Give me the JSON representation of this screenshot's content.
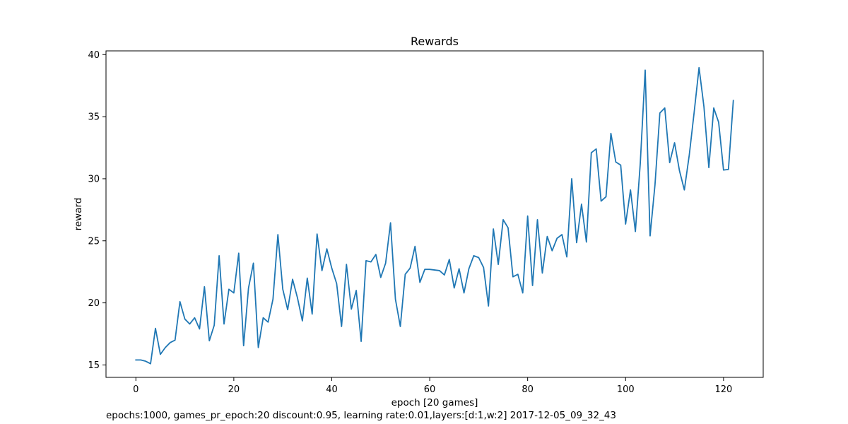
{
  "chart_data": {
    "type": "line",
    "title": "Rewards",
    "xlabel": "epoch [20 games]",
    "ylabel": "reward",
    "xlim": [
      -6.1,
      128.1
    ],
    "ylim": [
      14.0,
      40.3
    ],
    "xticks": [
      0,
      20,
      40,
      60,
      80,
      100,
      120
    ],
    "xtick_labels": [
      "0",
      "20",
      "40",
      "60",
      "80",
      "100",
      "120"
    ],
    "yticks": [
      15,
      20,
      25,
      30,
      35,
      40
    ],
    "ytick_labels": [
      "15",
      "20",
      "25",
      "30",
      "35",
      "40"
    ],
    "grid": false,
    "line_color": "#1f77b4",
    "series": [
      {
        "name": "reward",
        "x": [
          0,
          1,
          2,
          3,
          4,
          5,
          6,
          7,
          8,
          9,
          10,
          11,
          12,
          13,
          14,
          15,
          16,
          17,
          18,
          19,
          20,
          21,
          22,
          23,
          24,
          25,
          26,
          27,
          28,
          29,
          30,
          31,
          32,
          33,
          34,
          35,
          36,
          37,
          38,
          39,
          40,
          41,
          42,
          43,
          44,
          45,
          46,
          47,
          48,
          49,
          50,
          51,
          52,
          53,
          54,
          55,
          56,
          57,
          58,
          59,
          60,
          61,
          62,
          63,
          64,
          65,
          66,
          67,
          68,
          69,
          70,
          71,
          72,
          73,
          74,
          75,
          76,
          77,
          78,
          79,
          80,
          81,
          82,
          83,
          84,
          85,
          86,
          87,
          88,
          89,
          90,
          91,
          92,
          93,
          94,
          95,
          96,
          97,
          98,
          99,
          100,
          101,
          102,
          103,
          104,
          105,
          106,
          107,
          108,
          109,
          110,
          111,
          112,
          113,
          114,
          115,
          116,
          117,
          118,
          119,
          120,
          121,
          122
        ],
        "values": [
          15.4,
          15.4,
          15.3,
          15.1,
          17.95,
          15.85,
          16.4,
          16.8,
          17.0,
          20.1,
          18.7,
          18.3,
          18.8,
          17.9,
          21.3,
          16.95,
          18.2,
          23.8,
          18.3,
          21.1,
          20.8,
          24.0,
          16.55,
          21.2,
          23.2,
          16.4,
          18.8,
          18.45,
          20.3,
          25.5,
          21.1,
          19.45,
          21.9,
          20.4,
          18.55,
          22.0,
          19.1,
          25.55,
          22.6,
          24.35,
          22.8,
          21.55,
          18.1,
          23.1,
          19.5,
          21.0,
          16.9,
          23.4,
          23.3,
          23.9,
          22.05,
          23.2,
          26.45,
          20.3,
          18.1,
          22.3,
          22.8,
          24.55,
          21.65,
          22.7,
          22.7,
          22.65,
          22.6,
          22.25,
          23.5,
          21.2,
          22.75,
          20.8,
          22.75,
          23.8,
          23.65,
          22.85,
          19.75,
          25.95,
          23.1,
          26.7,
          26.05,
          22.1,
          22.3,
          20.8,
          27.0,
          21.4,
          26.7,
          22.4,
          25.35,
          24.2,
          25.2,
          25.5,
          23.7,
          30.0,
          24.85,
          27.95,
          24.9,
          32.1,
          32.4,
          28.2,
          28.55,
          33.65,
          31.35,
          31.1,
          26.35,
          29.1,
          25.75,
          31.25,
          38.75,
          25.4,
          29.5,
          35.3,
          35.7,
          31.3,
          32.9,
          30.65,
          29.1,
          31.9,
          35.35,
          38.95,
          35.8,
          30.9,
          35.7,
          34.55,
          30.7,
          30.75,
          36.3
        ]
      }
    ]
  },
  "footer": {
    "text": "epochs:1000, games_pr_epoch:20 discount:0.95, learning rate:0.01,layers:[d:1,w:2] 2017-12-05_09_32_43"
  }
}
